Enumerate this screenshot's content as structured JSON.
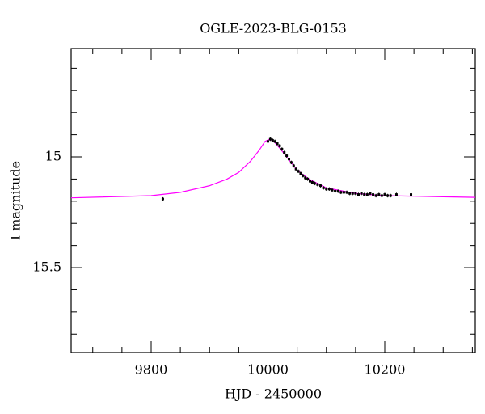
{
  "chart_data": {
    "type": "scatter",
    "title": "OGLE-2023-BLG-0153",
    "x_label": "HJD - 2450000",
    "y_label": "I magnitude",
    "xlim": [
      9663,
      10355
    ],
    "ylim": [
      15.883,
      14.511
    ],
    "xticks": [
      9800,
      10000,
      10200
    ],
    "x_minor_ticks": [
      9700,
      9750,
      9850,
      9900,
      9950,
      10050,
      10100,
      10150,
      10250,
      10300,
      10350
    ],
    "yticks": [
      15,
      15.5
    ],
    "y_minor_ticks": [
      14.6,
      14.7,
      14.8,
      14.9,
      15.1,
      15.2,
      15.3,
      15.4,
      15.6,
      15.7,
      15.8
    ],
    "model": {
      "color": "#ff00ff",
      "x": [
        9663,
        9800,
        9850,
        9900,
        9930,
        9950,
        9970,
        9985,
        9995,
        10003,
        10010,
        10020,
        10035,
        10050,
        10070,
        10100,
        10150,
        10200,
        10300,
        10355
      ],
      "values": [
        15.185,
        15.175,
        15.16,
        15.13,
        15.1,
        15.07,
        15.02,
        14.97,
        14.93,
        14.92,
        14.93,
        14.96,
        15.01,
        15.06,
        15.1,
        15.14,
        15.165,
        15.175,
        15.18,
        15.183
      ]
    },
    "series": [
      {
        "color": "#000000",
        "x": [
          9820,
          10000,
          10004,
          10008,
          10012,
          10016,
          10020,
          10024,
          10028,
          10032,
          10036,
          10040,
          10044,
          10048,
          10052,
          10056,
          10060,
          10064,
          10068,
          10072,
          10076,
          10080,
          10085,
          10090,
          10095,
          10100,
          10105,
          10110,
          10115,
          10120,
          10125,
          10130,
          10135,
          10140,
          10145,
          10150,
          10155,
          10160,
          10165,
          10170,
          10175,
          10180,
          10185,
          10190,
          10195,
          10200,
          10205,
          10210,
          10220,
          10245
        ],
        "values": [
          15.19,
          14.93,
          14.92,
          14.925,
          14.93,
          14.94,
          14.95,
          14.965,
          14.98,
          14.995,
          15.01,
          15.025,
          15.04,
          15.055,
          15.065,
          15.075,
          15.085,
          15.095,
          15.1,
          15.11,
          15.115,
          15.12,
          15.125,
          15.13,
          15.14,
          15.145,
          15.145,
          15.15,
          15.155,
          15.155,
          15.16,
          15.16,
          15.16,
          15.165,
          15.165,
          15.165,
          15.17,
          15.165,
          15.17,
          15.17,
          15.165,
          15.17,
          15.175,
          15.17,
          15.175,
          15.17,
          15.175,
          15.175,
          15.17,
          15.17
        ],
        "errors": [
          0.008,
          0.008,
          0.008,
          0.008,
          0.008,
          0.008,
          0.008,
          0.008,
          0.008,
          0.008,
          0.008,
          0.008,
          0.008,
          0.008,
          0.008,
          0.008,
          0.008,
          0.008,
          0.008,
          0.008,
          0.008,
          0.008,
          0.008,
          0.008,
          0.008,
          0.008,
          0.008,
          0.008,
          0.008,
          0.008,
          0.008,
          0.008,
          0.008,
          0.008,
          0.008,
          0.008,
          0.008,
          0.008,
          0.008,
          0.008,
          0.008,
          0.008,
          0.008,
          0.008,
          0.008,
          0.008,
          0.008,
          0.008,
          0.008,
          0.012
        ]
      }
    ]
  }
}
